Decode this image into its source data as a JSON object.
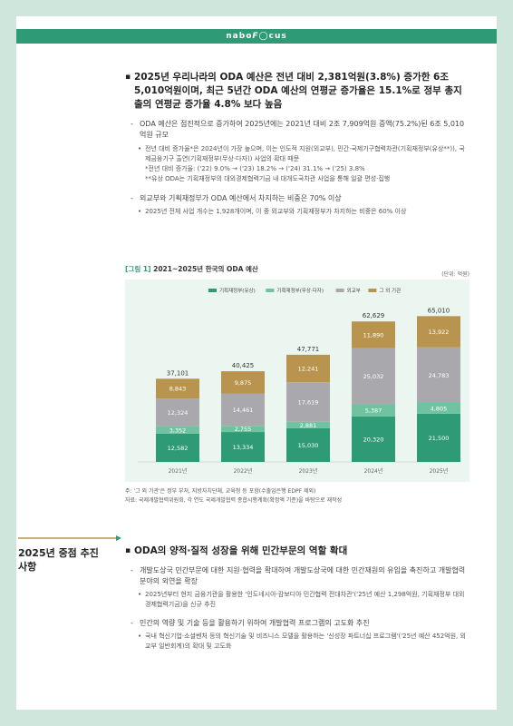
{
  "header": {
    "logo_prefix": "nabo",
    "logo_focus": "F",
    "logo_suffix": "cus"
  },
  "section1": {
    "heading": "2025년 우리나라의 ODA 예산은 전년 대비 2,381억원(3.8%) 증가한 6조 5,010억원이며, 최근 5년간 ODA 예산의 연평균 증가율은 15.1%로 정부 총지출의 연평균 증가율 4.8% 보다 높음",
    "items": [
      "ODA 예산은 점진적으로 증가하여 2025년에는 2021년 대비 2조 7,909억원 증액(75.2%)된 6조 5,010억원 규모",
      "전년 대비 증가율*은 2024년이 가장 높으며, 이는 인도적 지원(외교부), 민간·국제기구협력차관(기획재정부(유상**)), 국제금융기구 출연(기획재정부(무상·다자)) 사업의 확대 때문",
      "*전년 대비 증가율: ('22) 9.0% → ('23) 18.2% → ('24) 31.1% → ('25) 3.8%",
      "**유상 ODA는 기획재정부의 대외경제협력기금 내 대개도국차관 사업을 통해 일괄 편성·집행",
      "외교부와 기획재정부가 ODA 예산에서 차지하는 비중은 70% 이상",
      "2025년 전체 사업 개수는 1,928개이며, 이 중 외교부와 기획재정부가 차지하는 비중은 60% 이상"
    ]
  },
  "figure": {
    "tag": "[그림 1]",
    "title": "2021~2025년 한국의 ODA 예산",
    "unit": "(단위: 억원)",
    "note1": "주: '그 외 기관'은 정부 부처, 지방자치단체, 교육청 등 포함(수출입은행 EDPF 제외)",
    "note2": "자료: 국제개발협력위원회, 각 연도 국제개발협력 종합시행계획(확정액 기준)을 바탕으로 재작성"
  },
  "chart_data": {
    "type": "bar",
    "stacked": true,
    "categories": [
      "2021년",
      "2022년",
      "2023년",
      "2024년",
      "2025년"
    ],
    "series": [
      {
        "name": "기획재정부(유상)",
        "color": "#2f9a76",
        "values": [
          12582,
          13334,
          15030,
          20320,
          21500
        ]
      },
      {
        "name": "기획재정부(무상·다자)",
        "color": "#6fc3a0",
        "values": [
          3352,
          2755,
          2881,
          5387,
          4805
        ]
      },
      {
        "name": "외교부",
        "color": "#a9a9ad",
        "values": [
          12324,
          14461,
          17619,
          25032,
          24783
        ]
      },
      {
        "name": "그 외 기관",
        "color": "#b8944f",
        "values": [
          8843,
          9875,
          12241,
          11890,
          13922
        ]
      }
    ],
    "totals": [
      37101,
      40425,
      47771,
      62629,
      65010
    ],
    "labels": [
      [
        "12,582",
        "13,334",
        "15,030",
        "20,320",
        "21,500"
      ],
      [
        "3,352",
        "2,755",
        "2,881",
        "5,387",
        "4,805"
      ],
      [
        "12,324",
        "14,461",
        "17,619",
        "25,032",
        "24,783"
      ],
      [
        "8,843",
        "9,875",
        "12,241",
        "11,890",
        "13,922"
      ]
    ],
    "total_labels": [
      "37,101",
      "40,425",
      "47,771",
      "62,629",
      "65,010"
    ],
    "ylim": [
      0,
      70000
    ],
    "legend": "top"
  },
  "section2": {
    "side_title": "2025년 중점 추진사항",
    "heading": "ODA의 양적·질적 성장을 위해 민간부문의 역할 확대",
    "items": [
      "개발도상국 민간부문에 대한 지원·협력을 확대하여 개발도상국에 대한 민간재원의 유입을 촉진하고 개발협력 분야의 외연을 확장",
      "2025년부터 현지 금융기관을 활용한 '인도네시아·캄보디아 민간협력 전대차관'('25년 예산 1,298억원, 기획재정부 대외경제협력기금)을 신규 추진",
      "민간의 역량 및 기술 등을 활용하기 위하여 개발협력 프로그램의 고도화 추진",
      "국내 혁신기업·소셜벤처 등의 혁신기술 및 비즈니스 모델을 활용하는 '신성장 파트너십 프로그램'('25년 예산 452억원, 외교부 일반회계)의 확대 및 고도화"
    ]
  }
}
